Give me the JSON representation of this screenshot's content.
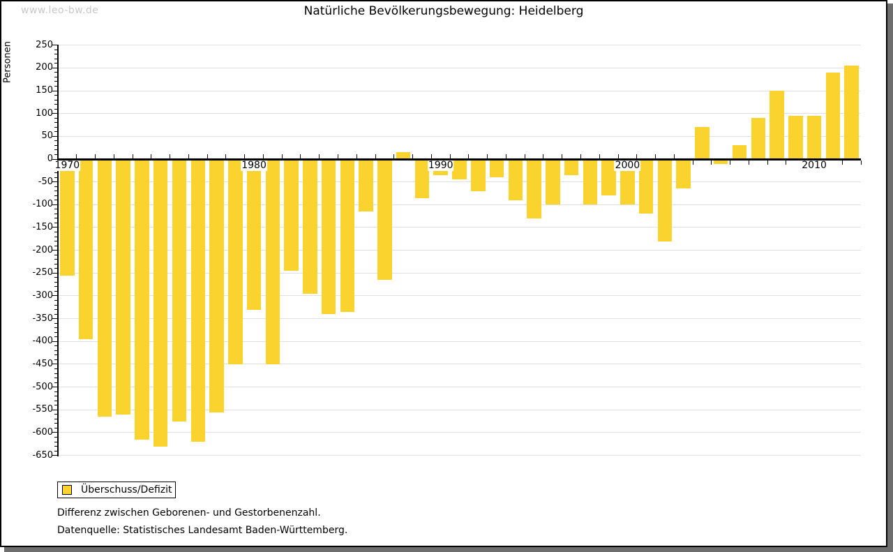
{
  "page": {
    "watermark": "www.leo-bw.de",
    "title": "Natürliche Bevölkerungsbewegung: Heidelberg"
  },
  "legend": {
    "label": "Überschuss/Defizit"
  },
  "notes": {
    "line1": "Differenz zwischen Geborenen- und Gestorbenenzahl.",
    "line2": "Datenquelle: Statistisches Landesamt Baden-Württemberg."
  },
  "colors": {
    "bar": "#fbd32f",
    "grid": "#e0e0e0",
    "axis": "#000000",
    "watermark_text": "#c8c8c8",
    "frame_shadow": "#6e6e6e"
  },
  "chart_data": {
    "type": "bar",
    "title": "Natürliche Bevölkerungsbewegung: Heidelberg",
    "ylabel": "Personen",
    "xlabel": "",
    "series_name": "Überschuss/Defizit",
    "ylim": [
      -650,
      250
    ],
    "y_tick_step": 50,
    "y_minor_tick_step": 10,
    "grid": true,
    "legend_position": "bottom-left",
    "x_axis_labels": [
      "1970",
      "1980",
      "1990",
      "2000",
      "2010"
    ],
    "categories": [
      1970,
      1971,
      1972,
      1973,
      1974,
      1975,
      1976,
      1977,
      1978,
      1979,
      1980,
      1981,
      1982,
      1983,
      1984,
      1985,
      1986,
      1987,
      1988,
      1989,
      1990,
      1991,
      1992,
      1993,
      1994,
      1995,
      1996,
      1997,
      1998,
      1999,
      2000,
      2001,
      2002,
      2003,
      2004,
      2005,
      2006,
      2007,
      2008,
      2009,
      2010,
      2011,
      2012
    ],
    "values": [
      -255,
      -395,
      -565,
      -560,
      -615,
      -630,
      -575,
      -620,
      -555,
      -450,
      -330,
      -450,
      -245,
      -295,
      -340,
      -335,
      -115,
      -265,
      15,
      -85,
      -35,
      -45,
      -70,
      -40,
      -90,
      -130,
      -100,
      -35,
      -100,
      -80,
      -100,
      -120,
      -180,
      -65,
      70,
      -10,
      30,
      90,
      150,
      95,
      95,
      190,
      205
    ]
  }
}
